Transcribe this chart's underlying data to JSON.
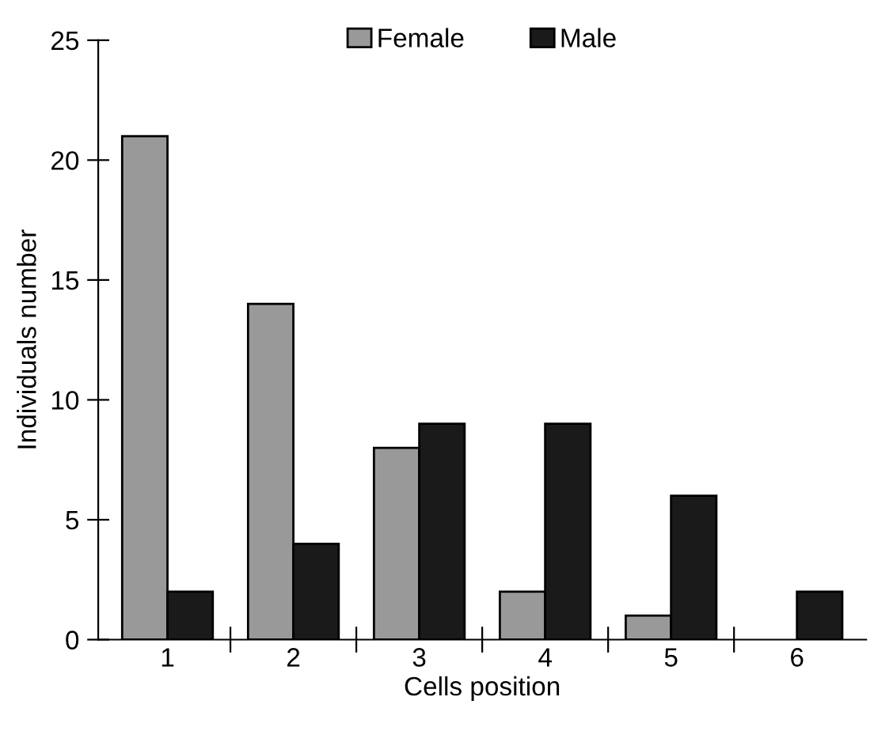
{
  "chart_data": {
    "type": "bar",
    "xlabel": "Cells position",
    "ylabel": "Individuals number",
    "categories": [
      "1",
      "2",
      "3",
      "4",
      "5",
      "6"
    ],
    "series": [
      {
        "name": "Female",
        "color": "#999999",
        "values": [
          21,
          14,
          8,
          2,
          1,
          null
        ]
      },
      {
        "name": "Male",
        "color": "#1a1a1a",
        "values": [
          2,
          4,
          9,
          9,
          6,
          2
        ]
      }
    ],
    "ylim": [
      0,
      25
    ],
    "yticks": [
      0,
      5,
      10,
      15,
      20,
      25
    ],
    "grid": false,
    "legend": "top"
  }
}
